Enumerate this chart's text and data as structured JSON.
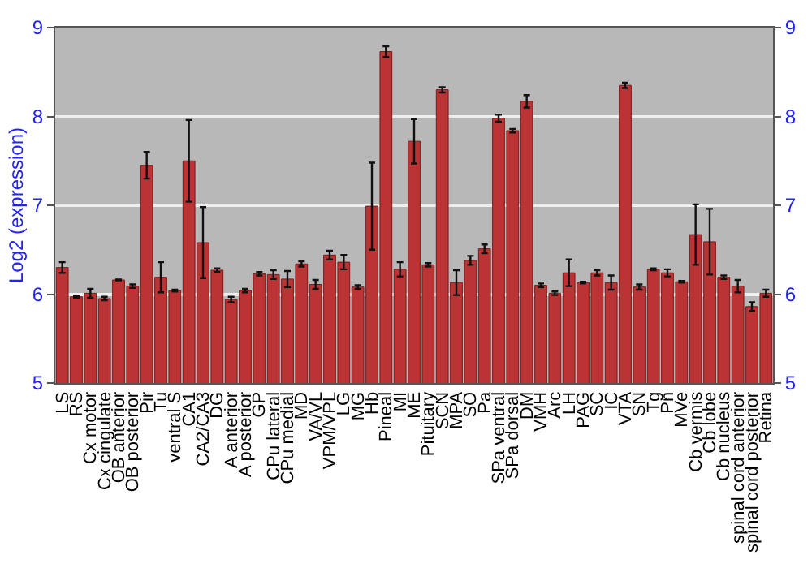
{
  "chart_data": {
    "type": "bar",
    "ylabel": "Log2 (expression)",
    "categories": [
      "LS",
      "RS",
      "Cx motor",
      "Cx cingulate",
      "OB anterior",
      "OB posterior",
      "Pir",
      "Tu",
      "ventral S",
      "CA1",
      "CA2/CA3",
      "DG",
      "A anterior",
      "A posterior",
      "GP",
      "CPu lateral",
      "CPu medial",
      "MD",
      "VA/VL",
      "VPM/VPL",
      "LG",
      "MG",
      "Hb",
      "Pineal",
      "MI",
      "ME",
      "Pituitary",
      "SCN",
      "MPA",
      "SO",
      "Pa",
      "SPa ventral",
      "SPa dorsal",
      "DM",
      "VMH",
      "Arc",
      "LH",
      "PAG",
      "SC",
      "IC",
      "VTA",
      "SN",
      "Tg",
      "Pn",
      "MVe",
      "Cb vermis",
      "Cb lobe",
      "Cb nucleus",
      "spinal cord anterior",
      "spinal cord posterior",
      "Retina"
    ],
    "values": [
      6.3,
      5.97,
      6.01,
      5.95,
      6.16,
      6.09,
      7.45,
      6.19,
      6.04,
      7.5,
      6.58,
      6.27,
      5.94,
      6.04,
      6.23,
      6.22,
      6.17,
      6.34,
      6.11,
      6.44,
      6.36,
      6.08,
      6.99,
      8.73,
      6.28,
      7.72,
      6.33,
      8.3,
      6.13,
      6.38,
      6.51,
      7.98,
      7.84,
      8.17,
      6.1,
      6.01,
      6.24,
      6.13,
      6.24,
      6.13,
      8.35,
      6.08,
      6.28,
      6.24,
      6.14,
      6.67,
      6.59,
      6.19,
      6.09,
      5.86,
      6.01
    ],
    "errors": [
      0.06,
      0.01,
      0.05,
      0.02,
      0.005,
      0.02,
      0.15,
      0.17,
      0.01,
      0.46,
      0.4,
      0.02,
      0.03,
      0.02,
      0.02,
      0.05,
      0.09,
      0.03,
      0.05,
      0.05,
      0.08,
      0.02,
      0.49,
      0.06,
      0.08,
      0.25,
      0.02,
      0.03,
      0.14,
      0.05,
      0.05,
      0.04,
      0.02,
      0.07,
      0.02,
      0.02,
      0.15,
      0.01,
      0.03,
      0.08,
      0.03,
      0.03,
      0.01,
      0.04,
      0.01,
      0.34,
      0.37,
      0.02,
      0.07,
      0.05,
      0.04
    ],
    "color": "#bb3433",
    "ylim": [
      5,
      9
    ],
    "yticks": [
      5,
      6,
      7,
      8,
      9
    ],
    "y2lim": [
      5,
      9
    ],
    "y2ticks": [
      5,
      6,
      7,
      8,
      9
    ],
    "grid": "y"
  }
}
